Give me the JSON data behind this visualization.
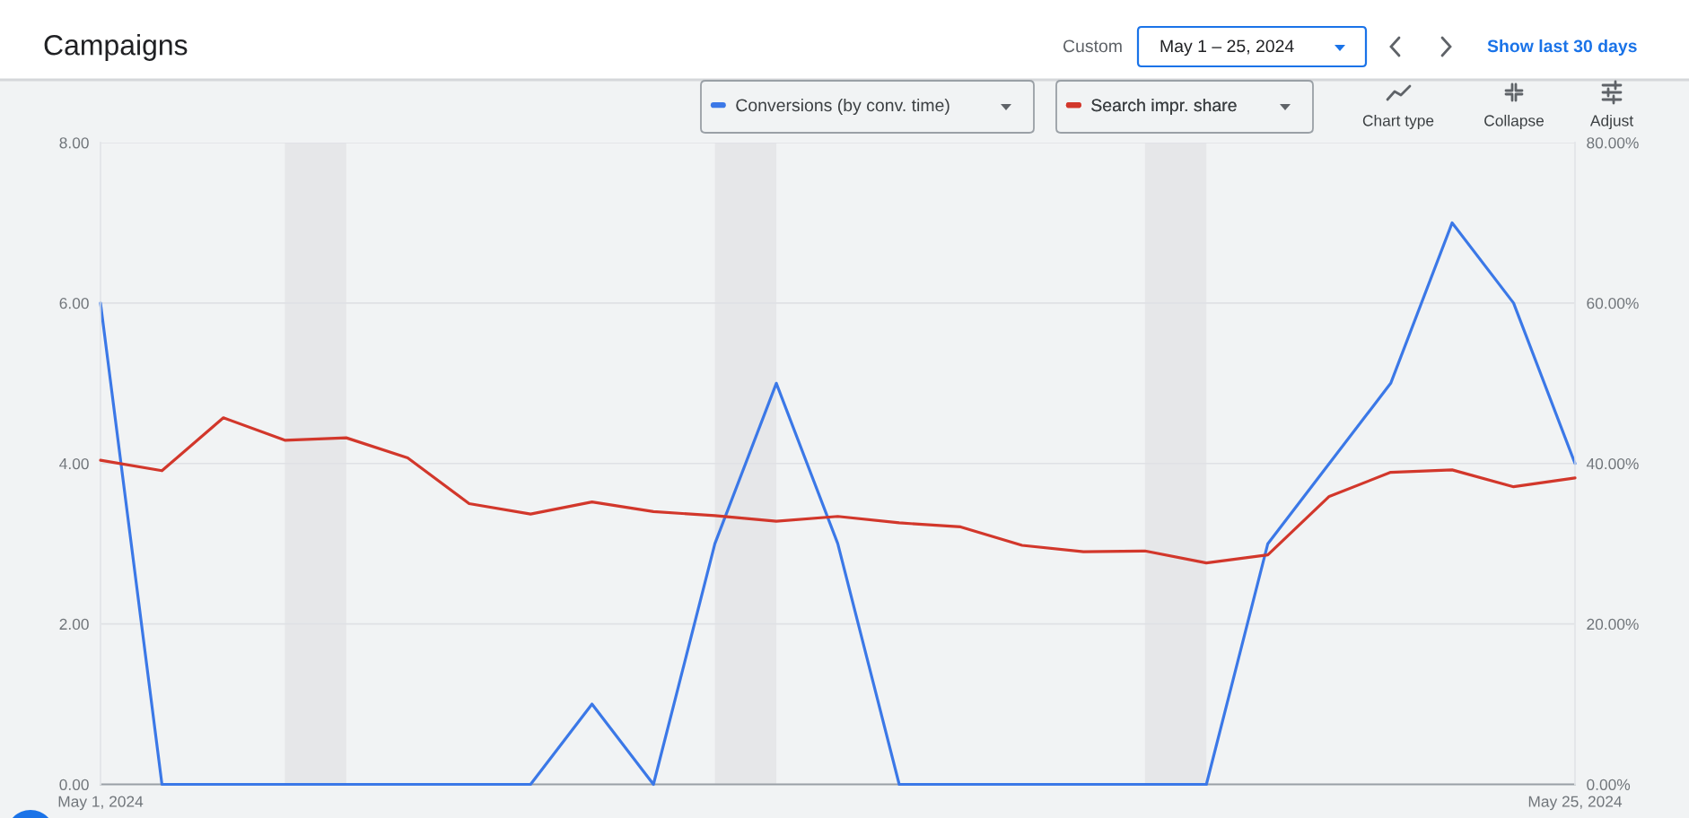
{
  "chart_data": {
    "type": "line",
    "title": "Campaigns",
    "annotations": [
      "Custom",
      "May 1 – 25, 2024",
      "Show last 30 days",
      "Chart type",
      "Collapse",
      "Adjust"
    ],
    "x": [
      "2024-05-01",
      "2024-05-02",
      "2024-05-03",
      "2024-05-04",
      "2024-05-05",
      "2024-05-06",
      "2024-05-07",
      "2024-05-08",
      "2024-05-09",
      "2024-05-10",
      "2024-05-11",
      "2024-05-12",
      "2024-05-13",
      "2024-05-14",
      "2024-05-15",
      "2024-05-16",
      "2024-05-17",
      "2024-05-18",
      "2024-05-19",
      "2024-05-20",
      "2024-05-21",
      "2024-05-22",
      "2024-05-23",
      "2024-05-24",
      "2024-05-25"
    ],
    "xlim": [
      "2024-05-01",
      "2024-05-25"
    ],
    "xticks": [
      {
        "value": "2024-05-01",
        "label": "May 1, 2024"
      },
      {
        "value": "2024-05-25",
        "label": "May 25, 2024"
      }
    ],
    "ylim": [
      0,
      8
    ],
    "yticks": [
      {
        "value": 0,
        "label": "0.00"
      },
      {
        "value": 2,
        "label": "2.00"
      },
      {
        "value": 4,
        "label": "4.00"
      },
      {
        "value": 6,
        "label": "6.00"
      },
      {
        "value": 8,
        "label": "8.00"
      }
    ],
    "y2lim": [
      0,
      80
    ],
    "y2ticks": [
      {
        "value": 0,
        "label": "0.00%"
      },
      {
        "value": 20,
        "label": "20.00%"
      },
      {
        "value": 40,
        "label": "40.00%"
      },
      {
        "value": 60,
        "label": "60.00%"
      },
      {
        "value": 80,
        "label": "80.00%"
      }
    ],
    "series": [
      {
        "name": "Conversions (by conv. time)",
        "color": "#3b78e7",
        "values": [
          6,
          0,
          0,
          0,
          0,
          0,
          0,
          0,
          1,
          0,
          3,
          5,
          3,
          0,
          0,
          0,
          0,
          0,
          0,
          3,
          4,
          5,
          7,
          6,
          4
        ]
      },
      {
        "name": "Search impr. share",
        "color": "#d2372b",
        "axis": "y2",
        "values": [
          40.4,
          39.1,
          45.7,
          42.9,
          43.2,
          40.7,
          35.0,
          33.7,
          35.2,
          34.0,
          33.5,
          32.8,
          33.4,
          32.6,
          32.1,
          29.8,
          29.0,
          29.1,
          27.6,
          28.6,
          35.9,
          38.9,
          39.2,
          37.1,
          38.2
        ]
      }
    ],
    "bands": [
      {
        "axis": "x",
        "from": "2024-05-04",
        "to": "2024-05-05",
        "color": "#e6e7e9"
      },
      {
        "axis": "x",
        "from": "2024-05-11",
        "to": "2024-05-12",
        "color": "#e6e7e9"
      },
      {
        "axis": "x",
        "from": "2024-05-18",
        "to": "2024-05-19",
        "color": "#e6e7e9"
      }
    ],
    "grid": "y",
    "legend": "top"
  }
}
